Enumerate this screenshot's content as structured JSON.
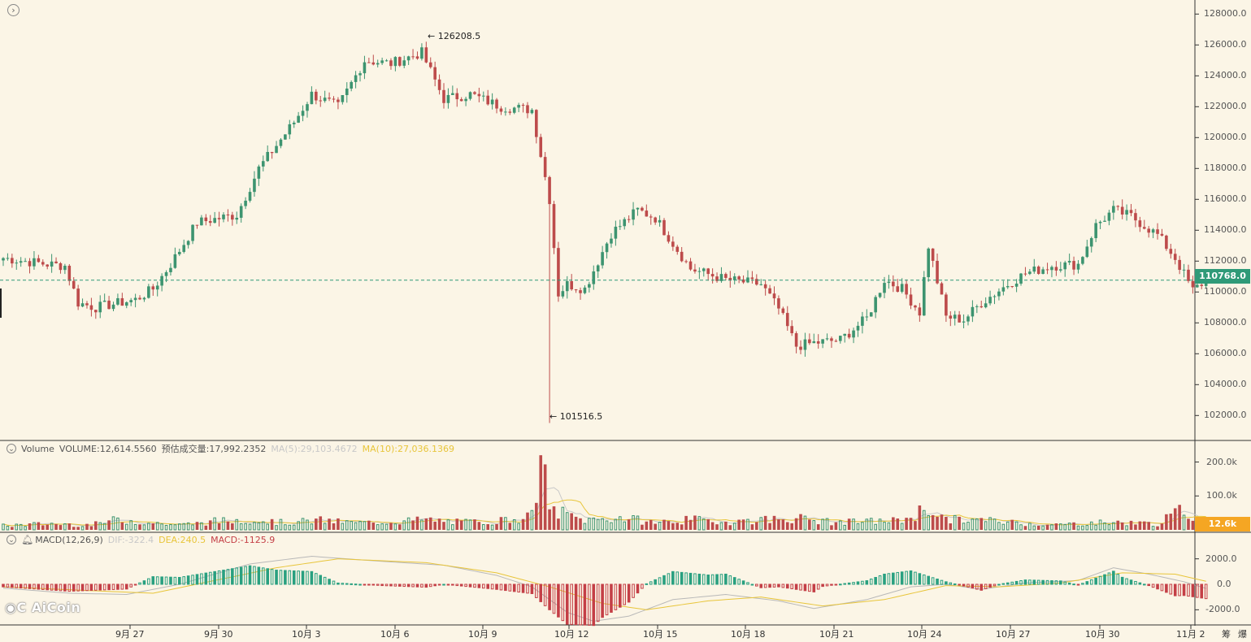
{
  "toolbar": {
    "expand_icon": "chevron-right-icon"
  },
  "volume_panel": {
    "title": "Volume",
    "volume_text": "VOLUME:12,614.5560",
    "estimate_text": "预估成交量:17,992.2352",
    "ma5_text": "MA(5):29,103.4672",
    "ma10_text": "MA(10):27,036.1369",
    "current_tag": "12.6k"
  },
  "macd_panel": {
    "title": "MACD(12,26,9)",
    "dif_text": "DIF:-322.4",
    "dea_text": "DEA:240.5",
    "macd_text": "MACD:-1125.9"
  },
  "price_panel": {
    "current_price_tag": "110768.0",
    "high_label": "126208.5",
    "low_label": "101516.5"
  },
  "logo": "AiCoin",
  "corner_labels": [
    "筹",
    "爆"
  ],
  "colors": {
    "up": "#3d9470",
    "down": "#bd4b4b",
    "bg": "#fbf5e6",
    "ma5": "#c8c8c8",
    "ma10": "#e8c53a",
    "macd_up": "#29a080",
    "macd_down": "#c43f46",
    "tag_price": "#2f9a78",
    "tag_volume": "#f5a623"
  },
  "chart_data": {
    "type": "candlestick",
    "x_labels": [
      "9月 27",
      "9月 30",
      "10月 3",
      "10月 6",
      "10月 9",
      "10月 12",
      "10月 15",
      "10月 18",
      "10月 21",
      "10月 24",
      "10月 27",
      "10月 30",
      "11月 2"
    ],
    "price_axis": {
      "ticks": [
        102000,
        104000,
        106000,
        108000,
        110000,
        112000,
        114000,
        116000,
        118000,
        120000,
        122000,
        124000,
        126000,
        128000
      ],
      "range": [
        100700,
        128700
      ]
    },
    "volume_axis": {
      "ticks": [
        100000,
        200000
      ],
      "tick_labels": [
        "100.0k",
        "200.0k"
      ],
      "range": [
        0,
        230000
      ]
    },
    "macd_axis": {
      "ticks": [
        -2000,
        0,
        2000
      ],
      "tick_labels": [
        "-2000.0",
        "0.0",
        "2000.0"
      ],
      "range": [
        -3000,
        3000
      ]
    },
    "annotations": {
      "high": 126208.5,
      "low": 101516.5,
      "last": 110768.0
    },
    "price_keyframes": [
      [
        0,
        112200
      ],
      [
        10,
        111800
      ],
      [
        14,
        111700
      ],
      [
        17,
        109300
      ],
      [
        21,
        109000
      ],
      [
        30,
        109500
      ],
      [
        34,
        110200
      ],
      [
        38,
        111800
      ],
      [
        44,
        114500
      ],
      [
        53,
        115000
      ],
      [
        58,
        118000
      ],
      [
        66,
        121000
      ],
      [
        70,
        122800
      ],
      [
        76,
        122000
      ],
      [
        82,
        125000
      ],
      [
        88,
        124800
      ],
      [
        95,
        125500
      ],
      [
        100,
        122500
      ],
      [
        106,
        122800
      ],
      [
        113,
        122000
      ],
      [
        120,
        121800
      ],
      [
        124,
        116000
      ],
      [
        126,
        109900
      ],
      [
        128,
        110500
      ],
      [
        132,
        110200
      ],
      [
        138,
        113800
      ],
      [
        144,
        115300
      ],
      [
        148,
        114800
      ],
      [
        156,
        111500
      ],
      [
        164,
        110800
      ],
      [
        172,
        110500
      ],
      [
        176,
        108900
      ],
      [
        180,
        106500
      ],
      [
        184,
        106700
      ],
      [
        190,
        106900
      ],
      [
        196,
        108300
      ],
      [
        200,
        110800
      ],
      [
        204,
        110200
      ],
      [
        208,
        108700
      ],
      [
        210,
        113000
      ],
      [
        214,
        108400
      ],
      [
        218,
        108200
      ],
      [
        222,
        109300
      ],
      [
        228,
        110500
      ],
      [
        232,
        111200
      ],
      [
        238,
        111700
      ],
      [
        244,
        111800
      ],
      [
        248,
        114300
      ],
      [
        252,
        115300
      ],
      [
        256,
        114900
      ],
      [
        262,
        113700
      ],
      [
        266,
        112200
      ],
      [
        270,
        110100
      ],
      [
        273,
        110768
      ]
    ],
    "volume_keyframes": [
      [
        0,
        12000
      ],
      [
        10,
        18000
      ],
      [
        20,
        15000
      ],
      [
        26,
        30000
      ],
      [
        34,
        20000
      ],
      [
        40,
        14000
      ],
      [
        48,
        25000
      ],
      [
        56,
        30000
      ],
      [
        64,
        20000
      ],
      [
        72,
        28000
      ],
      [
        80,
        20000
      ],
      [
        88,
        24000
      ],
      [
        96,
        30000
      ],
      [
        104,
        22000
      ],
      [
        112,
        26000
      ],
      [
        120,
        40000
      ],
      [
        122,
        220000
      ],
      [
        124,
        60000
      ],
      [
        132,
        28000
      ],
      [
        140,
        35000
      ],
      [
        148,
        22000
      ],
      [
        156,
        30000
      ],
      [
        164,
        24000
      ],
      [
        172,
        30000
      ],
      [
        180,
        35000
      ],
      [
        188,
        22000
      ],
      [
        196,
        24000
      ],
      [
        204,
        28000
      ],
      [
        210,
        65000
      ],
      [
        214,
        30000
      ],
      [
        222,
        28000
      ],
      [
        230,
        22000
      ],
      [
        238,
        14000
      ],
      [
        246,
        20000
      ],
      [
        254,
        22000
      ],
      [
        262,
        18000
      ],
      [
        268,
        60000
      ],
      [
        273,
        12600
      ]
    ],
    "macd_dif_keyframes": [
      [
        0,
        -300
      ],
      [
        15,
        -700
      ],
      [
        28,
        -800
      ],
      [
        40,
        0
      ],
      [
        56,
        1600
      ],
      [
        70,
        2200
      ],
      [
        86,
        1800
      ],
      [
        100,
        1500
      ],
      [
        112,
        700
      ],
      [
        120,
        -200
      ],
      [
        128,
        -2200
      ],
      [
        134,
        -2900
      ],
      [
        142,
        -2500
      ],
      [
        152,
        -1200
      ],
      [
        164,
        -800
      ],
      [
        176,
        -1300
      ],
      [
        184,
        -1900
      ],
      [
        196,
        -1200
      ],
      [
        206,
        -200
      ],
      [
        214,
        0
      ],
      [
        222,
        -400
      ],
      [
        232,
        100
      ],
      [
        244,
        300
      ],
      [
        252,
        1300
      ],
      [
        260,
        800
      ],
      [
        268,
        200
      ],
      [
        273,
        -322.4
      ]
    ],
    "macd_dea_keyframes": [
      [
        0,
        -200
      ],
      [
        20,
        -500
      ],
      [
        34,
        -700
      ],
      [
        48,
        300
      ],
      [
        62,
        1300
      ],
      [
        76,
        2000
      ],
      [
        96,
        1700
      ],
      [
        112,
        900
      ],
      [
        124,
        -200
      ],
      [
        136,
        -1500
      ],
      [
        146,
        -2000
      ],
      [
        160,
        -1300
      ],
      [
        172,
        -1000
      ],
      [
        186,
        -1700
      ],
      [
        200,
        -1200
      ],
      [
        214,
        -100
      ],
      [
        226,
        -200
      ],
      [
        240,
        100
      ],
      [
        254,
        900
      ],
      [
        266,
        800
      ],
      [
        273,
        240.5
      ]
    ]
  }
}
